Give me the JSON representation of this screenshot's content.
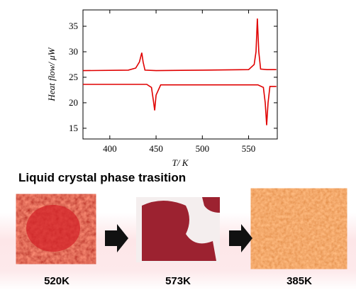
{
  "chart_data": {
    "type": "line",
    "x_label": "T/ K",
    "y_label": "Heat flow/ μW",
    "xlim": [
      371,
      581
    ],
    "ylim": [
      12.9,
      38.2
    ],
    "xticks": [
      400,
      450,
      500,
      550
    ],
    "yticks": [
      15,
      20,
      25,
      30,
      35
    ],
    "series": [
      {
        "color": "#e00000",
        "x": [
          371,
          420,
          428,
          432,
          434.5,
          436,
          438,
          450,
          500,
          550,
          556,
          558,
          559.5,
          561,
          563,
          570,
          580
        ],
        "values": [
          26.3,
          26.4,
          26.8,
          28.0,
          29.8,
          28.0,
          26.4,
          26.3,
          26.4,
          26.5,
          27.5,
          30.0,
          36.5,
          30.0,
          26.6,
          26.5,
          26.5
        ]
      },
      {
        "color": "#e00000",
        "x": [
          371,
          440,
          445,
          447,
          448.5,
          450,
          455,
          500,
          560,
          566,
          568,
          569.5,
          571,
          573,
          580
        ],
        "values": [
          23.6,
          23.6,
          23.0,
          20.5,
          18.5,
          21.5,
          23.5,
          23.5,
          23.5,
          23.0,
          20.0,
          15.6,
          20.0,
          23.2,
          23.2
        ]
      }
    ]
  },
  "figure": {
    "heading": "Liquid crystal phase trasition",
    "panels": [
      {
        "label": "520K"
      },
      {
        "label": "573K"
      },
      {
        "label": "385K"
      }
    ]
  }
}
